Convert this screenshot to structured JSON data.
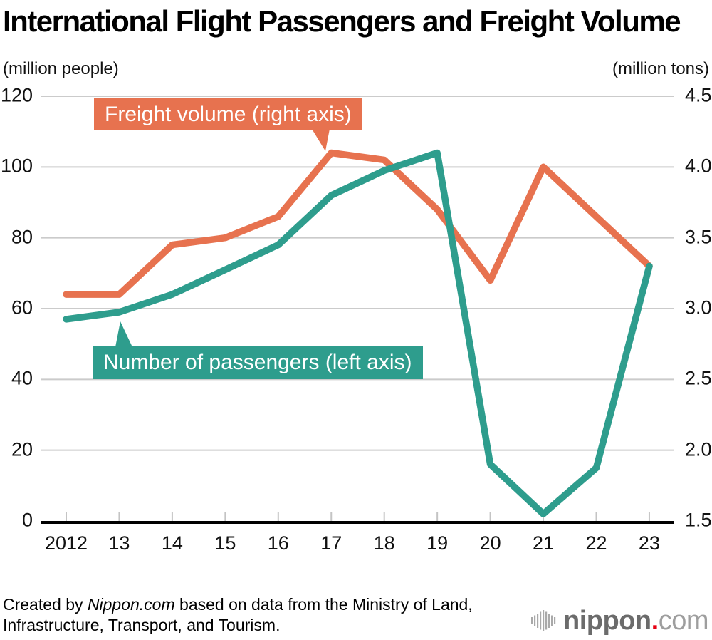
{
  "title": "International Flight Passengers and Freight Volume",
  "left_axis_unit": "(million people)",
  "right_axis_unit": "(million tons)",
  "legend": {
    "freight_label": "Freight volume (right axis)",
    "passengers_label": "Number of passengers (left axis)"
  },
  "colors": {
    "passengers": "#2E9D8D",
    "freight": "#E7724F",
    "grid": "#CBCBCB",
    "tick": "#C4C4C4",
    "axis": "#000000",
    "logo_gray": "#6B6B6B",
    "logo_light_gray": "#9E9E9E",
    "logo_red": "#E60012",
    "logo_wave": "#A9A9A9"
  },
  "chart_data": {
    "type": "line",
    "title": "International Flight Passengers and Freight Volume",
    "categories": [
      "2012",
      "13",
      "14",
      "15",
      "16",
      "17",
      "18",
      "19",
      "20",
      "21",
      "22",
      "23"
    ],
    "series": [
      {
        "name": "Freight volume (right axis)",
        "axis": "right",
        "color": "#E7724F",
        "values": [
          3.1,
          3.1,
          3.45,
          3.5,
          3.65,
          4.1,
          4.05,
          3.7,
          3.2,
          4.0,
          3.65,
          3.3
        ]
      },
      {
        "name": "Number of passengers (left axis)",
        "axis": "left",
        "color": "#2E9D8D",
        "values": [
          57,
          59,
          64,
          71,
          78,
          92,
          99,
          104,
          16,
          2,
          15,
          72
        ]
      }
    ],
    "left_axis": {
      "label": "(million people)",
      "min": 0,
      "max": 120,
      "ticks": [
        0,
        20,
        40,
        60,
        80,
        100,
        120
      ],
      "tick_labels": [
        "0",
        "20",
        "40",
        "60",
        "80",
        "100",
        "120"
      ]
    },
    "right_axis": {
      "label": "(million tons)",
      "min": 1.5,
      "max": 4.5,
      "ticks": [
        1.5,
        2.0,
        2.5,
        3.0,
        3.5,
        4.0,
        4.5
      ],
      "tick_labels": [
        "1.5",
        "2.0",
        "2.5",
        "3.0",
        "3.5",
        "4.0",
        "4.5"
      ]
    },
    "grid": true,
    "legend_position": "callouts-inside-plot"
  },
  "footer": {
    "credit_prefix": "Created by ",
    "credit_source": "Nippon.com",
    "credit_suffix": " based on data from the Ministry of Land, Infrastructure, Transport, and Tourism."
  },
  "logo": {
    "name_bold": "nippon",
    "dot": ".",
    "name_light": "com"
  }
}
